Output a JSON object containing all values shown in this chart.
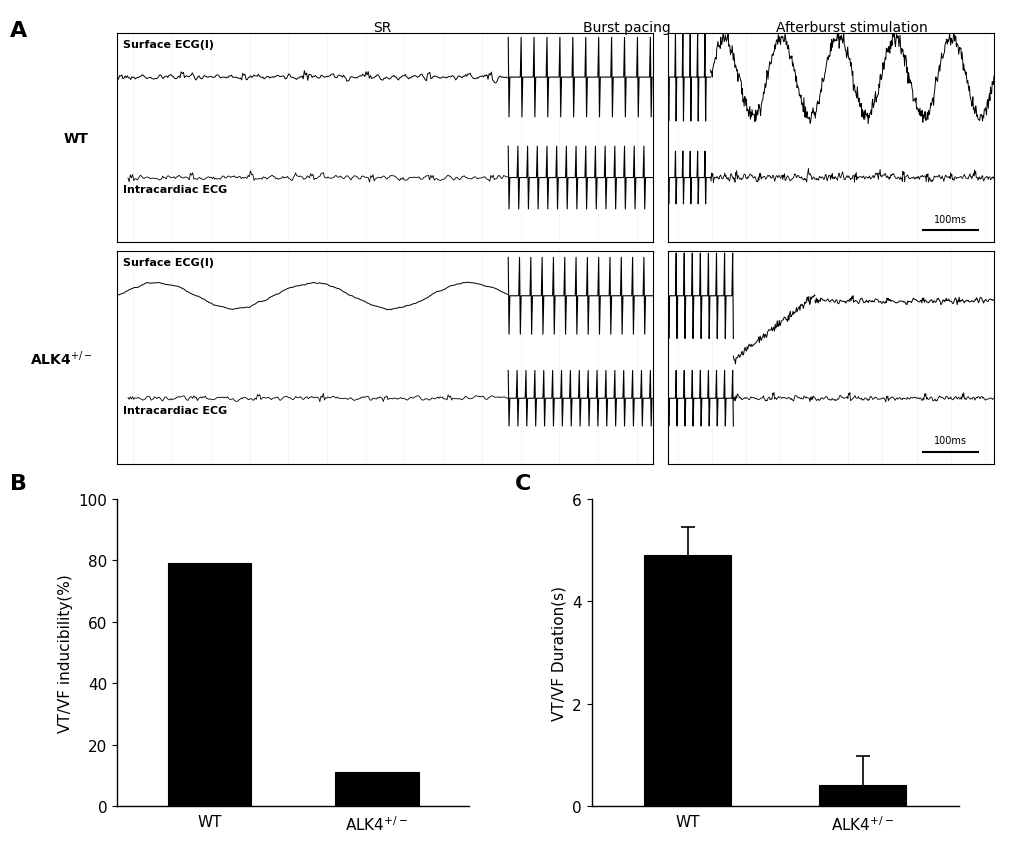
{
  "panel_A_label": "A",
  "panel_B_label": "B",
  "panel_C_label": "C",
  "ecg_section_labels": [
    "SR",
    "Burst pacing",
    "Afterburst stimulation"
  ],
  "wt_label": "WT",
  "alk4_label": "ALK4+/-",
  "surface_ecg_label": "Surface ECG(I)",
  "intracardiac_ecg_label": "Intracardiac ECG",
  "scalebar_label": "100ms",
  "bar_B_categories": [
    "WT",
    "ALK4+/-"
  ],
  "bar_B_values": [
    79,
    11
  ],
  "bar_B_ylabel": "VT/VF inducibility(%)",
  "bar_B_ylim": [
    0,
    100
  ],
  "bar_B_yticks": [
    0,
    20,
    40,
    60,
    80,
    100
  ],
  "bar_B_color": "#000000",
  "bar_C_categories": [
    "WT",
    "ALK4+/-"
  ],
  "bar_C_values": [
    4.9,
    0.42
  ],
  "bar_C_errors": [
    0.55,
    0.55
  ],
  "bar_C_ylabel": "VT/VF Duration(s)",
  "bar_C_ylim": [
    0,
    6
  ],
  "bar_C_yticks": [
    0,
    2,
    4,
    6
  ],
  "bar_C_color": "#000000",
  "bg_color": "#ffffff",
  "bar_edge_color": "#000000",
  "bar_width": 0.5,
  "font_size_label": 13,
  "font_size_tick": 11,
  "font_size_axis": 11
}
